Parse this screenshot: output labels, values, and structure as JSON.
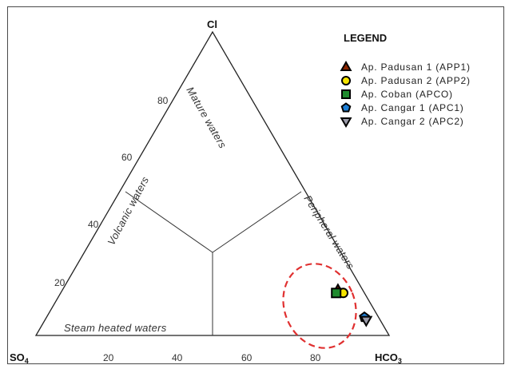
{
  "chart_data": {
    "type": "ternary",
    "corners": {
      "top": "Cl",
      "left": "SO",
      "left_sub": "4",
      "right": "HCO",
      "right_sub": "3"
    },
    "bottom_ticks": [
      "20",
      "40",
      "60",
      "80"
    ],
    "left_ticks": [
      "20",
      "40",
      "60",
      "80"
    ],
    "regions": {
      "mature": "Mature waters",
      "volcanic": "Volcanic waters",
      "peripheral": "Peripheral waters",
      "steam": "Steam heated waters"
    },
    "legend_title": "LEGEND",
    "series": [
      {
        "name": "Ap. Padusan 1 (APP1)",
        "marker": "triangle-up",
        "color": "#8b2500",
        "edge": "#000000",
        "cl": 15,
        "so4": 7,
        "hco3": 78
      },
      {
        "name": "Ap. Padusan 2 (APP2)",
        "marker": "circle",
        "color": "#f5e400",
        "edge": "#000000",
        "cl": 14,
        "so4": 6,
        "hco3": 80
      },
      {
        "name": "Ap. Coban (APCO)",
        "marker": "square",
        "color": "#1f8a2e",
        "edge": "#000000",
        "cl": 14,
        "so4": 8,
        "hco3": 78
      },
      {
        "name": "Ap. Cangar 1 (APC1)",
        "marker": "pentagon",
        "color": "#1e7fd6",
        "edge": "#000000",
        "cl": 6,
        "so4": 4,
        "hco3": 90
      },
      {
        "name": "Ap. Cangar 2 (APC2)",
        "marker": "triangle-down",
        "color": "#9a9aa8",
        "edge": "#000000",
        "cl": 5,
        "so4": 4,
        "hco3": 91
      }
    ],
    "highlight_color": "#e03030"
  }
}
